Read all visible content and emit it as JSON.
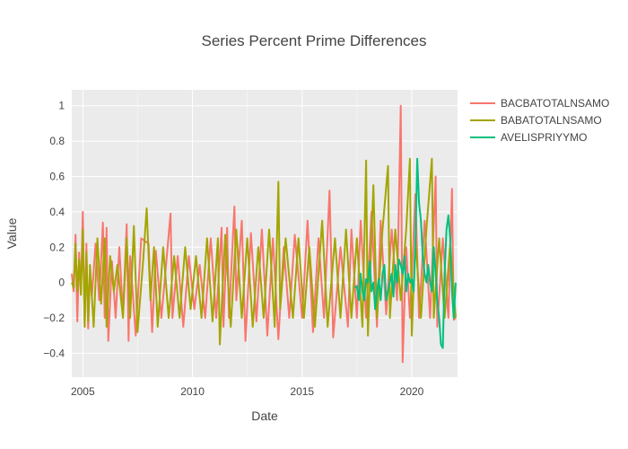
{
  "chart_data": {
    "type": "line",
    "title": "Series Percent Prime Differences",
    "xlabel": "Date",
    "ylabel": "Value",
    "x_range": [
      "2004-07-01",
      "2022-02-01"
    ],
    "x_ticks": [
      "2005",
      "2010",
      "2015",
      "2020"
    ],
    "y_range": [
      -0.535,
      1.09
    ],
    "y_ticks": [
      "1",
      "0.8",
      "0.6",
      "0.4",
      "0.2",
      "0",
      "−0.2",
      "−0.4"
    ],
    "grid": true,
    "legend_position": "top-right",
    "series": [
      {
        "name": "BACBATOTALNSAMO",
        "color": "#F8766D",
        "points": [
          [
            "2004-07-01",
            0.05
          ],
          [
            "2004-08-01",
            -0.05
          ],
          [
            "2004-09-01",
            0.27
          ],
          [
            "2004-10-01",
            -0.22
          ],
          [
            "2004-11-01",
            0.17
          ],
          [
            "2004-12-01",
            -0.05
          ],
          [
            "2005-01-01",
            0.4
          ],
          [
            "2005-02-01",
            -0.25
          ],
          [
            "2005-03-01",
            0.22
          ],
          [
            "2005-04-01",
            -0.26
          ],
          [
            "2005-05-01",
            0.05
          ],
          [
            "2005-06-01",
            -0.08
          ],
          [
            "2005-08-01",
            0.22
          ],
          [
            "2005-10-01",
            -0.1
          ],
          [
            "2005-12-01",
            0.34
          ],
          [
            "2006-01-01",
            -0.2
          ],
          [
            "2006-02-01",
            0.31
          ],
          [
            "2006-03-01",
            -0.33
          ],
          [
            "2006-05-01",
            0.12
          ],
          [
            "2006-07-01",
            -0.2
          ],
          [
            "2006-09-01",
            0.2
          ],
          [
            "2006-11-01",
            -0.18
          ],
          [
            "2007-01-01",
            0.33
          ],
          [
            "2007-02-01",
            -0.33
          ],
          [
            "2007-03-01",
            0.15
          ],
          [
            "2007-06-01",
            -0.3
          ],
          [
            "2007-09-01",
            0.25
          ],
          [
            "2008-01-01",
            0.22
          ],
          [
            "2008-03-01",
            -0.28
          ],
          [
            "2008-05-01",
            0.18
          ],
          [
            "2008-08-01",
            -0.2
          ],
          [
            "2009-01-01",
            0.39
          ],
          [
            "2009-02-01",
            -0.2
          ],
          [
            "2009-05-01",
            0.15
          ],
          [
            "2009-08-01",
            -0.25
          ],
          [
            "2009-11-01",
            0.15
          ],
          [
            "2010-02-01",
            -0.15
          ],
          [
            "2010-05-01",
            0.1
          ],
          [
            "2010-08-01",
            -0.2
          ],
          [
            "2010-11-01",
            0.25
          ],
          [
            "2011-02-01",
            -0.2
          ],
          [
            "2011-05-01",
            0.31
          ],
          [
            "2011-06-01",
            -0.25
          ],
          [
            "2011-08-01",
            0.31
          ],
          [
            "2011-09-01",
            -0.2
          ],
          [
            "2011-12-01",
            0.43
          ],
          [
            "2012-01-01",
            -0.1
          ],
          [
            "2012-04-01",
            0.35
          ],
          [
            "2012-06-01",
            -0.33
          ],
          [
            "2012-09-01",
            0.28
          ],
          [
            "2012-12-01",
            -0.22
          ],
          [
            "2013-03-01",
            0.3
          ],
          [
            "2013-06-01",
            -0.3
          ],
          [
            "2013-09-01",
            0.25
          ],
          [
            "2013-12-01",
            -0.32
          ],
          [
            "2014-03-01",
            0.2
          ],
          [
            "2014-06-01",
            -0.2
          ],
          [
            "2014-09-01",
            0.27
          ],
          [
            "2015-01-01",
            -0.2
          ],
          [
            "2015-04-01",
            0.35
          ],
          [
            "2015-07-01",
            -0.28
          ],
          [
            "2015-10-01",
            0.25
          ],
          [
            "2016-01-01",
            -0.2
          ],
          [
            "2016-04-01",
            0.52
          ],
          [
            "2016-06-01",
            -0.31
          ],
          [
            "2016-10-01",
            0.2
          ],
          [
            "2017-02-01",
            -0.25
          ],
          [
            "2017-04-01",
            0.3
          ],
          [
            "2017-07-01",
            -0.2
          ],
          [
            "2017-09-01",
            0.35
          ],
          [
            "2017-12-01",
            -0.2
          ],
          [
            "2018-03-01",
            0.4
          ],
          [
            "2018-06-01",
            -0.25
          ],
          [
            "2018-08-01",
            0.35
          ],
          [
            "2018-11-01",
            -0.18
          ],
          [
            "2019-02-01",
            0.3
          ],
          [
            "2019-05-01",
            -0.1
          ],
          [
            "2019-07-01",
            1.0
          ],
          [
            "2019-08-01",
            -0.45
          ],
          [
            "2019-10-01",
            0.2
          ],
          [
            "2019-12-01",
            -0.2
          ],
          [
            "2020-03-01",
            0.5
          ],
          [
            "2020-05-01",
            -0.2
          ],
          [
            "2020-08-01",
            0.35
          ],
          [
            "2020-11-01",
            -0.2
          ],
          [
            "2021-02-01",
            0.6
          ],
          [
            "2021-03-01",
            -0.25
          ],
          [
            "2021-06-01",
            0.25
          ],
          [
            "2021-09-01",
            -0.2
          ],
          [
            "2021-11-01",
            0.53
          ],
          [
            "2021-12-01",
            -0.21
          ],
          [
            "2022-01-01",
            -0.2
          ]
        ]
      },
      {
        "name": "BABATOTALNSAMO",
        "color": "#A3A500",
        "points": [
          [
            "2004-07-01",
            0.0
          ],
          [
            "2004-08-01",
            -0.03
          ],
          [
            "2004-09-01",
            0.22
          ],
          [
            "2004-10-01",
            -0.05
          ],
          [
            "2004-11-01",
            0.13
          ],
          [
            "2004-12-01",
            -0.07
          ],
          [
            "2005-01-01",
            0.3
          ],
          [
            "2005-02-01",
            -0.25
          ],
          [
            "2005-03-01",
            0.17
          ],
          [
            "2005-04-01",
            -0.22
          ],
          [
            "2005-05-01",
            0.1
          ],
          [
            "2005-07-01",
            -0.25
          ],
          [
            "2005-09-01",
            0.25
          ],
          [
            "2005-11-01",
            -0.12
          ],
          [
            "2006-01-01",
            0.25
          ],
          [
            "2006-02-01",
            -0.25
          ],
          [
            "2006-04-01",
            0.15
          ],
          [
            "2006-06-01",
            -0.05
          ],
          [
            "2006-08-01",
            0.1
          ],
          [
            "2006-11-01",
            -0.2
          ],
          [
            "2007-01-01",
            0.25
          ],
          [
            "2007-03-01",
            -0.2
          ],
          [
            "2007-05-01",
            0.32
          ],
          [
            "2007-07-01",
            -0.28
          ],
          [
            "2007-10-01",
            0.12
          ],
          [
            "2007-12-01",
            0.42
          ],
          [
            "2008-02-01",
            -0.1
          ],
          [
            "2008-04-01",
            0.2
          ],
          [
            "2008-06-01",
            -0.25
          ],
          [
            "2008-09-01",
            0.2
          ],
          [
            "2008-12-01",
            -0.2
          ],
          [
            "2009-03-01",
            0.15
          ],
          [
            "2009-06-01",
            -0.2
          ],
          [
            "2009-09-01",
            0.2
          ],
          [
            "2009-12-01",
            -0.15
          ],
          [
            "2010-03-01",
            0.15
          ],
          [
            "2010-06-01",
            -0.2
          ],
          [
            "2010-09-01",
            0.25
          ],
          [
            "2010-12-01",
            -0.22
          ],
          [
            "2011-03-01",
            0.25
          ],
          [
            "2011-04-01",
            -0.35
          ],
          [
            "2011-07-01",
            0.27
          ],
          [
            "2011-10-01",
            -0.25
          ],
          [
            "2012-01-01",
            0.3
          ],
          [
            "2012-04-01",
            -0.2
          ],
          [
            "2012-07-01",
            0.25
          ],
          [
            "2012-10-01",
            -0.25
          ],
          [
            "2013-01-01",
            0.2
          ],
          [
            "2013-04-01",
            -0.2
          ],
          [
            "2013-07-01",
            0.3
          ],
          [
            "2013-10-01",
            -0.25
          ],
          [
            "2013-12-01",
            0.57
          ],
          [
            "2014-01-01",
            -0.15
          ],
          [
            "2014-04-01",
            0.25
          ],
          [
            "2014-08-01",
            -0.2
          ],
          [
            "2014-11-01",
            0.25
          ],
          [
            "2015-02-01",
            -0.2
          ],
          [
            "2015-05-01",
            0.2
          ],
          [
            "2015-08-01",
            -0.25
          ],
          [
            "2015-12-01",
            0.35
          ],
          [
            "2016-03-01",
            -0.25
          ],
          [
            "2016-07-01",
            0.25
          ],
          [
            "2016-10-01",
            -0.2
          ],
          [
            "2017-01-01",
            0.3
          ],
          [
            "2017-04-01",
            -0.2
          ],
          [
            "2017-07-01",
            0.25
          ],
          [
            "2017-10-01",
            -0.25
          ],
          [
            "2017-12-01",
            0.69
          ],
          [
            "2018-01-01",
            -0.3
          ],
          [
            "2018-04-01",
            0.55
          ],
          [
            "2018-06-01",
            -0.2
          ],
          [
            "2018-09-01",
            0.3
          ],
          [
            "2018-12-01",
            0.66
          ],
          [
            "2019-01-01",
            -0.2
          ],
          [
            "2019-04-01",
            0.3
          ],
          [
            "2019-07-01",
            -0.1
          ],
          [
            "2019-10-01",
            0.3
          ],
          [
            "2019-12-01",
            0.7
          ],
          [
            "2020-01-01",
            -0.3
          ],
          [
            "2020-03-01",
            0.25
          ],
          [
            "2020-06-01",
            -0.2
          ],
          [
            "2020-09-01",
            0.3
          ],
          [
            "2020-12-01",
            0.7
          ],
          [
            "2021-01-01",
            -0.2
          ],
          [
            "2021-04-01",
            0.25
          ],
          [
            "2021-07-01",
            -0.2
          ],
          [
            "2021-10-01",
            0.22
          ],
          [
            "2022-01-01",
            -0.2
          ]
        ]
      },
      {
        "name": "AVELISPRIYYMO",
        "color": "#00BF7D",
        "points": [
          [
            "2017-06-01",
            -0.03
          ],
          [
            "2017-07-01",
            -0.02
          ],
          [
            "2017-08-01",
            -0.1
          ],
          [
            "2017-09-01",
            0.05
          ],
          [
            "2017-10-01",
            -0.05
          ],
          [
            "2017-11-01",
            -0.1
          ],
          [
            "2017-12-01",
            0.02
          ],
          [
            "2018-01-01",
            0.0
          ],
          [
            "2018-02-01",
            0.12
          ],
          [
            "2018-03-01",
            -0.05
          ],
          [
            "2018-04-01",
            0.0
          ],
          [
            "2018-05-01",
            -0.15
          ],
          [
            "2018-06-01",
            -0.05
          ],
          [
            "2018-07-01",
            0.02
          ],
          [
            "2018-08-01",
            -0.1
          ],
          [
            "2018-09-01",
            0.05
          ],
          [
            "2018-10-01",
            0.1
          ],
          [
            "2018-11-01",
            -0.1
          ],
          [
            "2018-12-01",
            -0.05
          ],
          [
            "2019-01-01",
            0.0
          ],
          [
            "2019-02-01",
            0.05
          ],
          [
            "2019-03-01",
            -0.08
          ],
          [
            "2019-04-01",
            0.1
          ],
          [
            "2019-05-01",
            0.0
          ],
          [
            "2019-06-01",
            0.13
          ],
          [
            "2019-07-01",
            0.1
          ],
          [
            "2019-08-01",
            0.05
          ],
          [
            "2019-09-01",
            0.15
          ],
          [
            "2019-10-01",
            -0.05
          ],
          [
            "2019-11-01",
            0.05
          ],
          [
            "2019-12-01",
            0.0
          ],
          [
            "2020-01-01",
            0.02
          ],
          [
            "2020-02-01",
            -0.05
          ],
          [
            "2020-03-01",
            0.2
          ],
          [
            "2020-04-01",
            0.7
          ],
          [
            "2020-05-01",
            0.45
          ],
          [
            "2020-06-01",
            0.35
          ],
          [
            "2020-07-01",
            0.15
          ],
          [
            "2020-08-01",
            0.05
          ],
          [
            "2020-09-01",
            0.0
          ],
          [
            "2020-10-01",
            0.1
          ],
          [
            "2020-11-01",
            0.0
          ],
          [
            "2020-12-01",
            -0.05
          ],
          [
            "2021-01-01",
            0.2
          ],
          [
            "2021-02-01",
            0.05
          ],
          [
            "2021-03-01",
            -0.1
          ],
          [
            "2021-04-01",
            -0.2
          ],
          [
            "2021-05-01",
            -0.35
          ],
          [
            "2021-06-01",
            -0.37
          ],
          [
            "2021-07-01",
            0.05
          ],
          [
            "2021-08-01",
            0.3
          ],
          [
            "2021-09-01",
            0.38
          ],
          [
            "2021-10-01",
            0.25
          ],
          [
            "2021-11-01",
            -0.05
          ],
          [
            "2021-12-01",
            -0.2
          ],
          [
            "2022-01-01",
            0.0
          ]
        ]
      }
    ]
  }
}
